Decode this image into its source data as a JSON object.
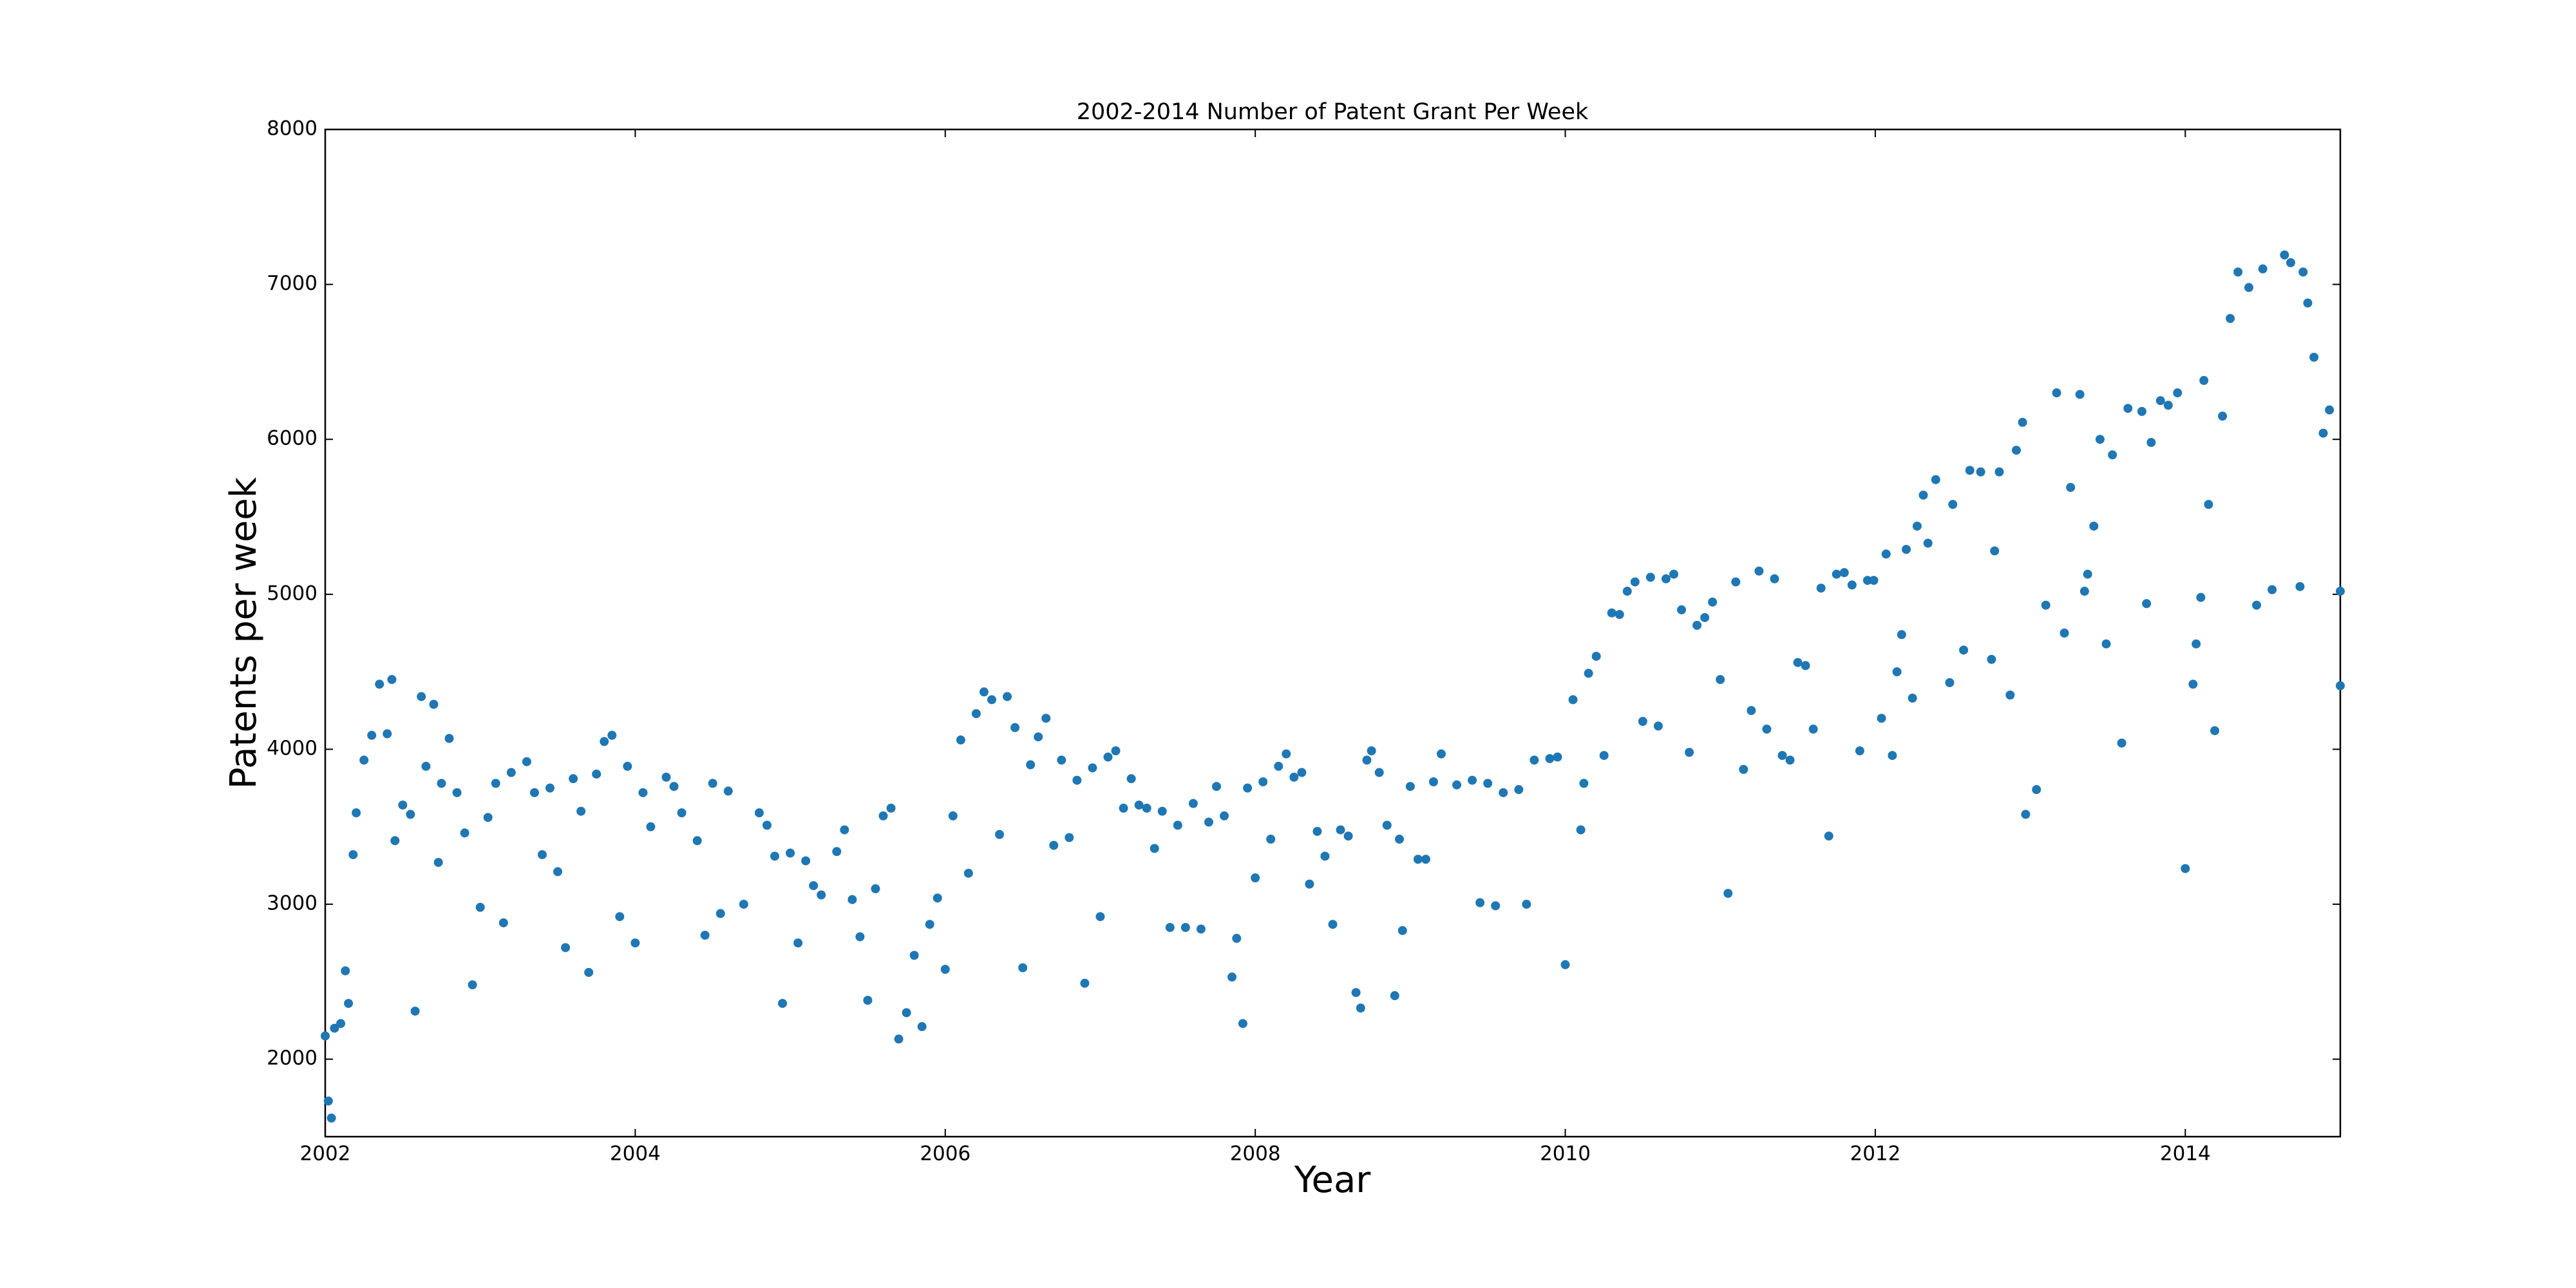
{
  "chart_data": {
    "type": "scatter",
    "title": "2002-2014 Number of Patent Grant Per Week",
    "x_label": "Year",
    "y_label": "Patents per week",
    "color": "#1f77b4",
    "grid": false,
    "xlim": [
      2002,
      2015
    ],
    "ylim": [
      1500,
      8000
    ],
    "xticks": [
      2002,
      2004,
      2006,
      2008,
      2010,
      2012,
      2014
    ],
    "yticks": [
      2000,
      3000,
      4000,
      5000,
      6000,
      7000,
      8000
    ],
    "x": [
      2002.0,
      2002.02,
      2002.04,
      2002.06,
      2002.1,
      2002.13,
      2002.15,
      2002.18,
      2002.2,
      2002.25,
      2002.3,
      2002.35,
      2002.4,
      2002.43,
      2002.45,
      2002.5,
      2002.55,
      2002.58,
      2002.62,
      2002.65,
      2002.7,
      2002.73,
      2002.75,
      2002.8,
      2002.85,
      2002.9,
      2002.95,
      2003.0,
      2003.05,
      2003.1,
      2003.15,
      2003.2,
      2003.3,
      2003.35,
      2003.4,
      2003.45,
      2003.5,
      2003.55,
      2003.6,
      2003.65,
      2003.7,
      2003.75,
      2003.8,
      2003.85,
      2003.9,
      2003.95,
      2004.0,
      2004.05,
      2004.1,
      2004.2,
      2004.25,
      2004.3,
      2004.4,
      2004.45,
      2004.5,
      2004.55,
      2004.6,
      2004.7,
      2004.8,
      2004.85,
      2004.9,
      2004.95,
      2005.0,
      2005.05,
      2005.1,
      2005.15,
      2005.2,
      2005.3,
      2005.35,
      2005.4,
      2005.45,
      2005.5,
      2005.55,
      2005.6,
      2005.65,
      2005.7,
      2005.75,
      2005.8,
      2005.85,
      2005.9,
      2005.95,
      2006.0,
      2006.05,
      2006.1,
      2006.15,
      2006.2,
      2006.25,
      2006.3,
      2006.35,
      2006.4,
      2006.45,
      2006.5,
      2006.55,
      2006.6,
      2006.65,
      2006.7,
      2006.75,
      2006.8,
      2006.85,
      2006.9,
      2006.95,
      2007.0,
      2007.05,
      2007.1,
      2007.15,
      2007.2,
      2007.25,
      2007.3,
      2007.35,
      2007.4,
      2007.45,
      2007.5,
      2007.55,
      2007.6,
      2007.65,
      2007.7,
      2007.75,
      2007.8,
      2007.85,
      2007.88,
      2007.92,
      2007.95,
      2008.0,
      2008.05,
      2008.1,
      2008.15,
      2008.2,
      2008.25,
      2008.3,
      2008.35,
      2008.4,
      2008.45,
      2008.5,
      2008.55,
      2008.6,
      2008.65,
      2008.68,
      2008.72,
      2008.75,
      2008.8,
      2008.85,
      2008.9,
      2008.93,
      2008.95,
      2009.0,
      2009.05,
      2009.1,
      2009.15,
      2009.2,
      2009.3,
      2009.4,
      2009.45,
      2009.5,
      2009.55,
      2009.6,
      2009.7,
      2009.75,
      2009.8,
      2009.9,
      2009.95,
      2010.0,
      2010.05,
      2010.1,
      2010.12,
      2010.15,
      2010.2,
      2010.25,
      2010.3,
      2010.35,
      2010.4,
      2010.45,
      2010.5,
      2010.55,
      2010.6,
      2010.65,
      2010.7,
      2010.75,
      2010.8,
      2010.85,
      2010.9,
      2010.95,
      2011.0,
      2011.05,
      2011.1,
      2011.15,
      2011.2,
      2011.25,
      2011.3,
      2011.35,
      2011.4,
      2011.45,
      2011.5,
      2011.55,
      2011.6,
      2011.65,
      2011.7,
      2011.75,
      2011.8,
      2011.85,
      2011.9,
      2011.95,
      2011.99,
      2012.04,
      2012.07,
      2012.11,
      2012.14,
      2012.17,
      2012.2,
      2012.24,
      2012.27,
      2012.31,
      2012.34,
      2012.39,
      2012.48,
      2012.5,
      2012.57,
      2012.61,
      2012.68,
      2012.75,
      2012.77,
      2012.8,
      2012.87,
      2012.91,
      2012.95,
      2012.97,
      2013.04,
      2013.1,
      2013.17,
      2013.22,
      2013.26,
      2013.32,
      2013.35,
      2013.37,
      2013.41,
      2013.45,
      2013.49,
      2013.53,
      2013.59,
      2013.63,
      2013.72,
      2013.75,
      2013.78,
      2013.84,
      2013.89,
      2013.95,
      2014.0,
      2014.05,
      2014.07,
      2014.1,
      2014.12,
      2014.15,
      2014.19,
      2014.24,
      2014.29,
      2014.34,
      2014.41,
      2014.46,
      2014.5,
      2014.56,
      2014.64,
      2014.68,
      2014.74,
      2014.76,
      2014.79,
      2014.83,
      2014.89,
      2014.93,
      2015.0,
      2015.0
    ],
    "values": [
      2150,
      1730,
      1620,
      2200,
      2230,
      2570,
      2360,
      3320,
      3590,
      3930,
      4090,
      4420,
      4100,
      4450,
      3410,
      3640,
      3580,
      2310,
      4340,
      3890,
      4290,
      3270,
      3780,
      4070,
      3720,
      3460,
      2480,
      2980,
      3560,
      3780,
      2880,
      3850,
      3920,
      3720,
      3320,
      3750,
      3210,
      2720,
      3810,
      3600,
      2560,
      3840,
      4050,
      4090,
      2920,
      3890,
      2750,
      3720,
      3500,
      3820,
      3760,
      3590,
      3410,
      2800,
      3780,
      2940,
      3730,
      3000,
      3590,
      3510,
      3310,
      2360,
      3330,
      2750,
      3280,
      3120,
      3060,
      3340,
      3480,
      3030,
      2790,
      2380,
      3100,
      3570,
      3620,
      2130,
      2300,
      2670,
      2210,
      2870,
      3040,
      2580,
      3570,
      4060,
      3200,
      4230,
      4370,
      4320,
      3450,
      4340,
      4140,
      2590,
      3900,
      4080,
      4200,
      3380,
      3930,
      3430,
      3800,
      2490,
      3880,
      2920,
      3950,
      3990,
      3620,
      3810,
      3640,
      3620,
      3360,
      3600,
      2850,
      3510,
      2850,
      3650,
      2840,
      3530,
      3760,
      3570,
      2530,
      2780,
      2230,
      3750,
      3170,
      3790,
      3420,
      3890,
      3970,
      3820,
      3850,
      3130,
      3470,
      3310,
      2870,
      3480,
      3440,
      2430,
      2330,
      3930,
      3990,
      3850,
      3510,
      2410,
      3420,
      2830,
      3760,
      3290,
      3290,
      3790,
      3970,
      3770,
      3800,
      3010,
      3780,
      2990,
      3720,
      3740,
      3000,
      3930,
      3940,
      3950,
      2610,
      4320,
      3480,
      3780,
      4490,
      4600,
      3960,
      4880,
      4870,
      5020,
      5080,
      4180,
      5110,
      4150,
      5100,
      5130,
      4900,
      3980,
      4800,
      4850,
      4950,
      4450,
      3070,
      5080,
      3870,
      4250,
      5150,
      4130,
      5100,
      3960,
      3930,
      4560,
      4540,
      4130,
      5040,
      3440,
      5130,
      5140,
      5060,
      3990,
      5090,
      5090,
      4200,
      5260,
      3960,
      4500,
      4740,
      5290,
      4330,
      5440,
      5640,
      5330,
      5740,
      4430,
      5580,
      4640,
      5800,
      5790,
      4580,
      5280,
      5790,
      4350,
      5930,
      6110,
      3580,
      3740,
      4930,
      6300,
      4750,
      5690,
      6290,
      5020,
      5130,
      5440,
      6000,
      4680,
      5900,
      4040,
      6200,
      6180,
      4940,
      5980,
      6250,
      6220,
      6300,
      3230,
      4420,
      4680,
      4980,
      6380,
      5580,
      4120,
      6150,
      6780,
      7080,
      6980,
      4930,
      7100,
      5030,
      7190,
      7140,
      5050,
      7080,
      6880,
      6530,
      6040,
      6190,
      5020,
      4410
    ]
  }
}
